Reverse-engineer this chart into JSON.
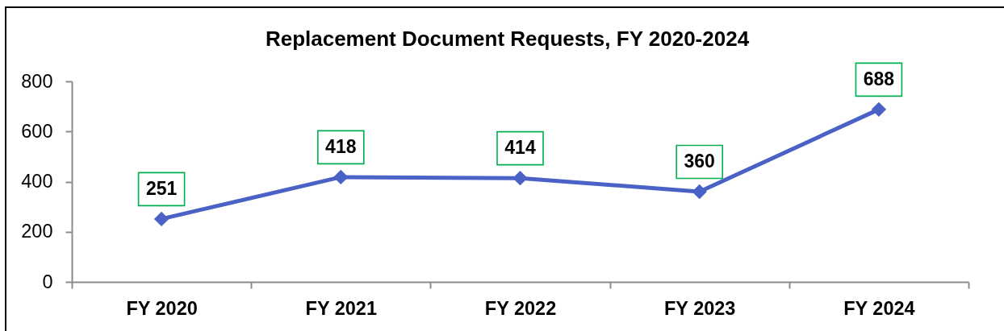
{
  "chart_data": {
    "type": "line",
    "title": "Replacement Document Requests, FY 2020-2024",
    "categories": [
      "FY 2020",
      "FY 2021",
      "FY 2022",
      "FY 2023",
      "FY 2024"
    ],
    "series": [
      {
        "color": "#4a62c6",
        "values": [
          251,
          418,
          414,
          360,
          688
        ]
      }
    ],
    "ylim": [
      0,
      800
    ],
    "yticks": [
      0,
      200,
      400,
      600,
      800
    ],
    "grid": false,
    "marker": "diamond",
    "line_style": "solid",
    "data_labels": true
  }
}
